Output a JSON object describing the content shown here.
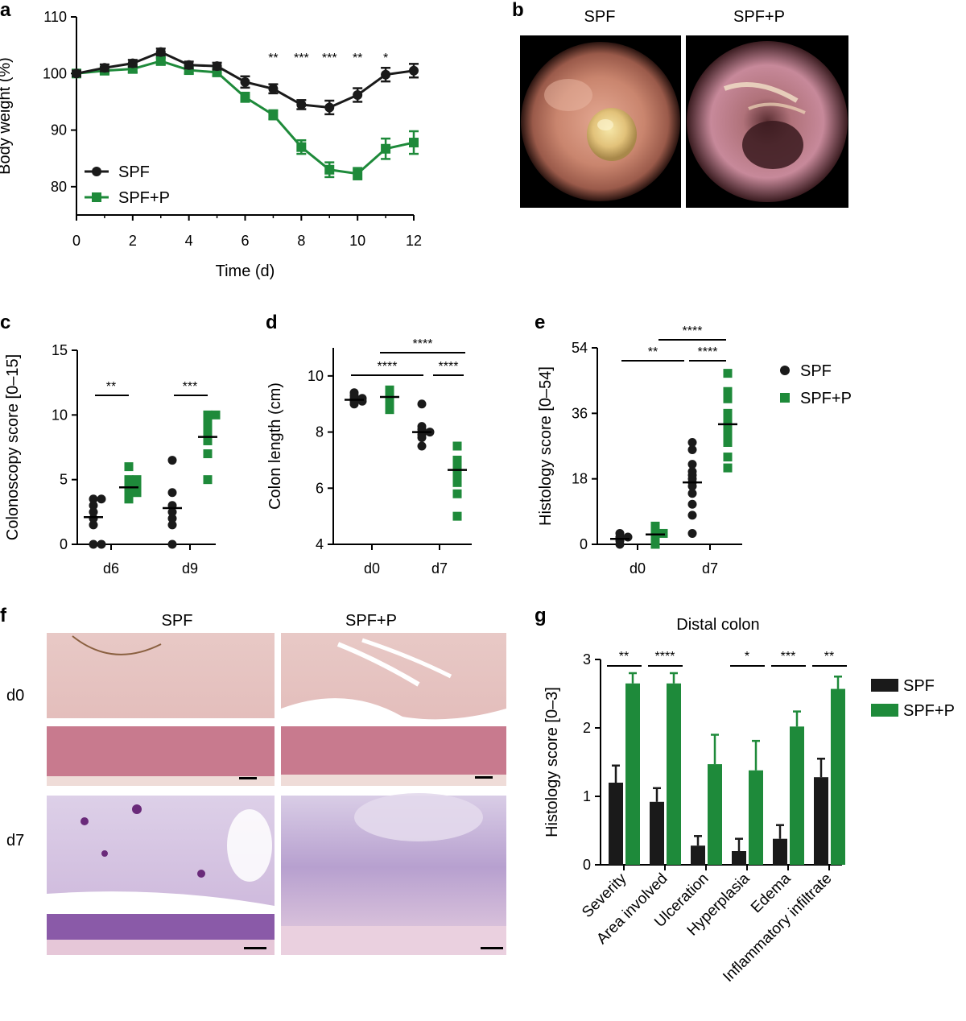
{
  "colors": {
    "spf": "#1a1a1a",
    "spfp": "#1e8a3a"
  },
  "panel_letters": {
    "a": "a",
    "b": "b",
    "c": "c",
    "d": "d",
    "e": "e",
    "f": "f",
    "g": "g"
  },
  "legend_series": {
    "spf": "SPF",
    "spfp": "SPF+P"
  },
  "panel_b": {
    "left_label": "SPF",
    "right_label": "SPF+P"
  },
  "panel_f": {
    "col_spf": "SPF",
    "col_spfp": "SPF+P",
    "row_d0": "d0",
    "row_d7": "d7"
  },
  "chart_data": [
    {
      "panel": "a",
      "type": "line",
      "xlabel": "Time (d)",
      "ylabel": "Body weight (%)",
      "xlim": [
        0,
        12
      ],
      "ylim": [
        75,
        110
      ],
      "xticks": [
        "0",
        "2",
        "4",
        "6",
        "8",
        "10",
        "12"
      ],
      "yticks": [
        "80",
        "90",
        "100",
        "110"
      ],
      "x": [
        0,
        1,
        2,
        3,
        4,
        5,
        6,
        7,
        8,
        9,
        10,
        11,
        12
      ],
      "series": [
        {
          "name": "SPF",
          "values": [
            100,
            101,
            101.8,
            103.8,
            101.5,
            101.3,
            98.5,
            97.3,
            94.5,
            94,
            96.2,
            99.8,
            100.5
          ],
          "err": [
            0.5,
            0.6,
            0.6,
            0.6,
            0.6,
            0.6,
            1.0,
            0.8,
            0.8,
            1.2,
            1.2,
            1.2,
            1.2
          ]
        },
        {
          "name": "SPF+P",
          "values": [
            100,
            100.5,
            100.8,
            102.2,
            100.6,
            100.2,
            95.8,
            92.7,
            87.0,
            83.0,
            82.3,
            86.7,
            87.8
          ],
          "err": [
            0.5,
            0.5,
            0.6,
            0.6,
            0.6,
            0.6,
            0.8,
            0.8,
            1.2,
            1.3,
            1.0,
            1.8,
            2.0
          ]
        }
      ],
      "annotations": [
        {
          "x": 7,
          "text": "**"
        },
        {
          "x": 8,
          "text": "***"
        },
        {
          "x": 9,
          "text": "***"
        },
        {
          "x": 10,
          "text": "**"
        },
        {
          "x": 11,
          "text": "*"
        }
      ],
      "legend_position": "bottom-left"
    },
    {
      "panel": "c",
      "type": "scatter",
      "ylabel": "Colonoscopy score [0–15]",
      "ylim": [
        0,
        15
      ],
      "yticks": [
        "0",
        "5",
        "10",
        "15"
      ],
      "groups": [
        "d6",
        "d9"
      ],
      "points": {
        "d6": {
          "SPF": [
            0,
            0,
            1.5,
            2,
            2.5,
            3,
            3.5,
            3.5
          ],
          "SPF+P": [
            3.5,
            4,
            4,
            4.5,
            4.5,
            5,
            5,
            6
          ]
        },
        "d9": {
          "SPF": [
            0,
            1.5,
            2,
            2.5,
            3,
            4,
            6.5
          ],
          "SPF+P": [
            5,
            7,
            8,
            8.5,
            9,
            9.5,
            10,
            10
          ]
        }
      },
      "means": {
        "d6": {
          "SPF": 2.1,
          "SPF+P": 4.4
        },
        "d9": {
          "SPF": 2.8,
          "SPF+P": 8.3
        }
      },
      "significance": [
        {
          "group": "d6",
          "text": "**"
        },
        {
          "group": "d9",
          "text": "***"
        }
      ]
    },
    {
      "panel": "d",
      "type": "scatter",
      "ylabel": "Colon length (cm)",
      "ylim": [
        4,
        11
      ],
      "yticks": [
        "4",
        "6",
        "8",
        "10"
      ],
      "groups": [
        "d0",
        "d7"
      ],
      "points": {
        "d0": {
          "SPF": [
            9.0,
            9.1,
            9.1,
            9.2,
            9.2,
            9.3,
            9.4
          ],
          "SPF+P": [
            8.8,
            9.0,
            9.2,
            9.3,
            9.4,
            9.5
          ]
        },
        "d7": {
          "SPF": [
            7.5,
            7.8,
            7.9,
            8.0,
            8.0,
            8.1,
            8.2,
            9.0
          ],
          "SPF+P": [
            5.0,
            5.8,
            6.2,
            6.5,
            6.7,
            6.9,
            7.0,
            7.5
          ]
        }
      },
      "means": {
        "d0": {
          "SPF": 9.15,
          "SPF+P": 9.25
        },
        "d7": {
          "SPF": 8.0,
          "SPF+P": 6.65
        }
      },
      "significance": [
        "****",
        "****",
        "****"
      ]
    },
    {
      "panel": "e",
      "type": "scatter",
      "ylabel": "Histology score [0–54]",
      "ylim": [
        0,
        54
      ],
      "yticks": [
        "0",
        "18",
        "36",
        "54"
      ],
      "groups": [
        "d0",
        "d7"
      ],
      "points": {
        "d0": {
          "SPF": [
            0,
            1,
            1.5,
            2,
            2,
            3
          ],
          "SPF+P": [
            0,
            1,
            2,
            3,
            3,
            4,
            5
          ]
        },
        "d7": {
          "SPF": [
            3,
            8,
            11,
            14,
            16,
            17,
            18,
            19,
            20,
            22,
            26,
            28
          ],
          "SPF+P": [
            21,
            24,
            28,
            30,
            31,
            32,
            34,
            36,
            40,
            42,
            47
          ]
        }
      },
      "means": {
        "d0": {
          "SPF": 1.5,
          "SPF+P": 2.7
        },
        "d7": {
          "SPF": 17,
          "SPF+P": 33
        }
      },
      "significance": [
        "**",
        "****",
        "****"
      ]
    },
    {
      "panel": "g",
      "type": "bar",
      "title": "Distal colon",
      "ylabel": "Histology score [0–3]",
      "ylim": [
        0,
        3
      ],
      "yticks": [
        "0",
        "1",
        "2",
        "3"
      ],
      "categories": [
        "Severity",
        "Area involved",
        "Ulceration",
        "Hyperplasia",
        "Edema",
        "Inflammatory infiltrate"
      ],
      "series": [
        {
          "name": "SPF",
          "values": [
            1.2,
            0.92,
            0.28,
            0.2,
            0.38,
            1.28
          ],
          "err": [
            0.25,
            0.2,
            0.14,
            0.18,
            0.2,
            0.27
          ]
        },
        {
          "name": "SPF+P",
          "values": [
            2.65,
            2.65,
            1.47,
            1.38,
            2.02,
            2.57
          ],
          "err": [
            0.15,
            0.15,
            0.43,
            0.43,
            0.22,
            0.18
          ]
        }
      ],
      "significance": [
        "**",
        "****",
        "",
        "*",
        "***",
        "**"
      ],
      "legend_position": "right"
    }
  ]
}
